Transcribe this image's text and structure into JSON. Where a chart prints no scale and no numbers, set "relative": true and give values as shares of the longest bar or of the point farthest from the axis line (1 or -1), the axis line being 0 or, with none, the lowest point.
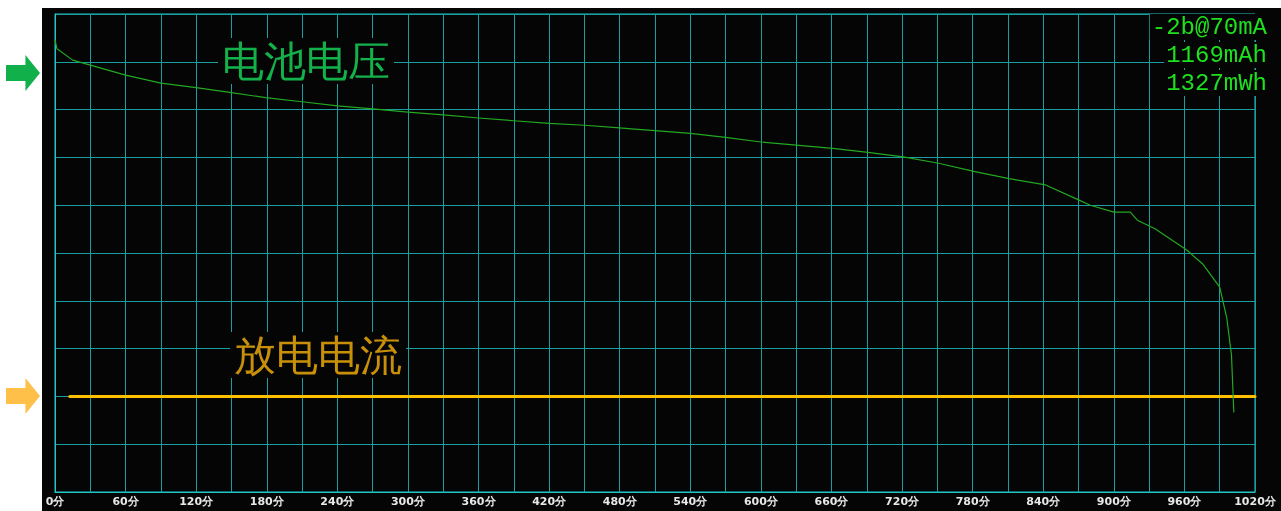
{
  "chart_data": {
    "type": "line",
    "relative": true,
    "marker": "none",
    "line_style": "solid",
    "grid": true,
    "legend": false,
    "xlim": [
      0,
      1020
    ],
    "xticks": [
      {
        "value": 0,
        "label": "0分"
      },
      {
        "value": 30,
        "label": null
      },
      {
        "value": 60,
        "label": "60分"
      },
      {
        "value": 90,
        "label": null
      },
      {
        "value": 120,
        "label": "120分"
      },
      {
        "value": 150,
        "label": null
      },
      {
        "value": 180,
        "label": "180分"
      },
      {
        "value": 210,
        "label": null
      },
      {
        "value": 240,
        "label": "240分"
      },
      {
        "value": 270,
        "label": null
      },
      {
        "value": 300,
        "label": "300分"
      },
      {
        "value": 330,
        "label": null
      },
      {
        "value": 360,
        "label": "360分"
      },
      {
        "value": 390,
        "label": null
      },
      {
        "value": 420,
        "label": "420分"
      },
      {
        "value": 450,
        "label": null
      },
      {
        "value": 480,
        "label": "480分"
      },
      {
        "value": 510,
        "label": null
      },
      {
        "value": 540,
        "label": "540分"
      },
      {
        "value": 570,
        "label": null
      },
      {
        "value": 600,
        "label": "600分"
      },
      {
        "value": 630,
        "label": null
      },
      {
        "value": 660,
        "label": "660分"
      },
      {
        "value": 690,
        "label": null
      },
      {
        "value": 720,
        "label": "720分"
      },
      {
        "value": 750,
        "label": null
      },
      {
        "value": 780,
        "label": "780分"
      },
      {
        "value": 810,
        "label": null
      },
      {
        "value": 840,
        "label": "840分"
      },
      {
        "value": 870,
        "label": null
      },
      {
        "value": 900,
        "label": "900分"
      },
      {
        "value": 930,
        "label": null
      },
      {
        "value": 960,
        "label": "960分"
      },
      {
        "value": 990,
        "label": null
      },
      {
        "value": 1020,
        "label": "1020分"
      }
    ],
    "annotations": [
      "-2b@70mA",
      "1169mAh",
      "1327mWh"
    ],
    "series": [
      {
        "name": "电池电压",
        "color": "#22a822",
        "x": [
          0,
          1.7,
          15,
          30,
          60,
          90,
          120,
          150,
          179,
          210,
          240,
          270,
          300,
          330,
          360,
          390,
          420,
          450,
          480,
          490,
          510,
          540,
          570,
          600,
          630,
          661,
          691,
          721,
          751,
          781,
          811,
          842,
          870,
          880,
          900,
          914,
          920,
          935,
          962,
          976,
          990,
          996,
          1000,
          1002
        ],
        "values": [
          1,
          0.98,
          0.955,
          0.944,
          0.922,
          0.904,
          0.894,
          0.883,
          0.872,
          0.863,
          0.854,
          0.847,
          0.84,
          0.834,
          0.827,
          0.821,
          0.815,
          0.811,
          0.805,
          0.803,
          0.799,
          0.793,
          0.784,
          0.774,
          0.767,
          0.76,
          0.751,
          0.741,
          0.727,
          0.709,
          0.693,
          0.679,
          0.646,
          0.634,
          0.619,
          0.619,
          0.601,
          0.582,
          0.535,
          0.503,
          0.453,
          0.385,
          0.303,
          0.177
        ]
      },
      {
        "name": "放电电流",
        "color": "#ffc000",
        "x": [
          12.6,
          1020
        ],
        "values": [
          0.211,
          0.211
        ]
      }
    ]
  }
}
